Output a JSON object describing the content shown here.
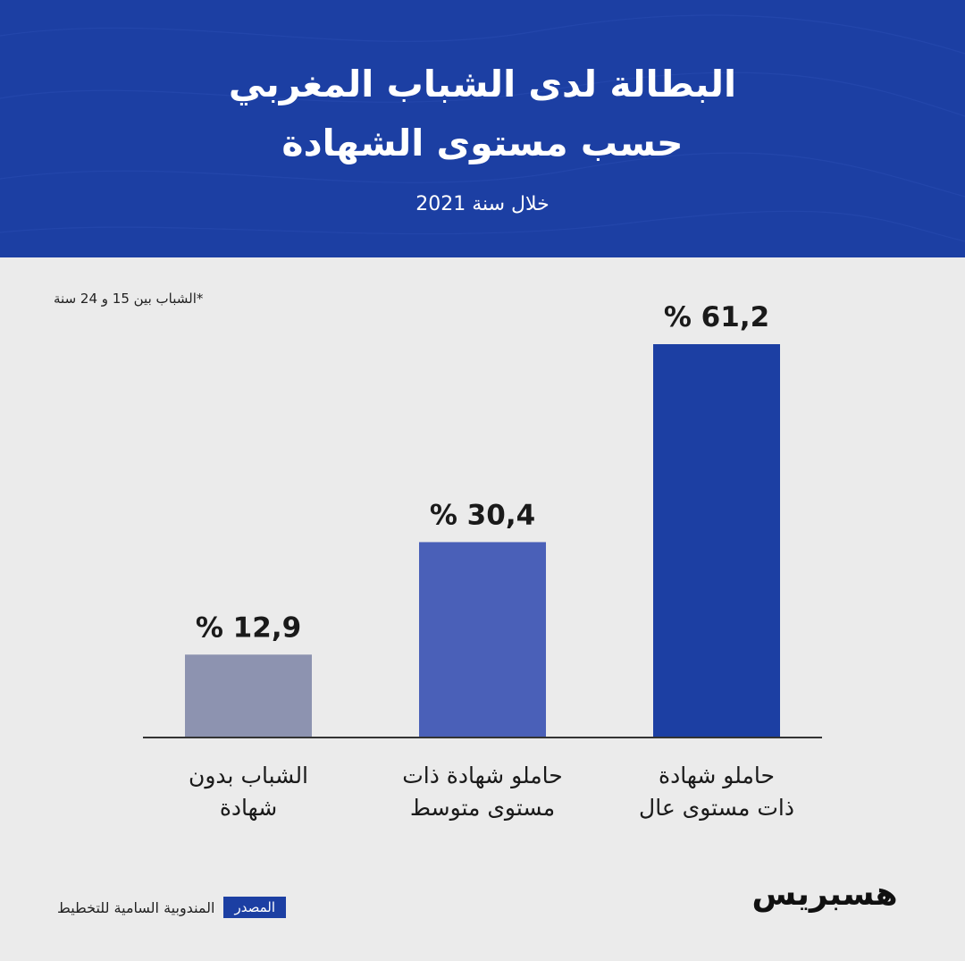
{
  "header": {
    "title_line1": "البطالة لدى الشباب المغربي",
    "title_line2": "حسب مستوى الشهادة",
    "subtitle": "خلال سنة 2021"
  },
  "footnote": "*الشباب بين 15 و 24 سنة",
  "chart_data": {
    "type": "bar",
    "categories": [
      "الشباب بدون شهادة",
      "حاملو شهادة ذات مستوى متوسط",
      "حاملو شهادة ذات مستوى عال"
    ],
    "category_lines": [
      [
        "الشباب بدون",
        "شهادة"
      ],
      [
        "حاملو شهادة ذات",
        "مستوى متوسط"
      ],
      [
        "حاملو شهادة",
        "ذات مستوى عال"
      ]
    ],
    "values": [
      12.9,
      30.4,
      61.2
    ],
    "value_labels": [
      "% 12,9",
      "% 30,4",
      "% 61,2"
    ],
    "unit": "%",
    "colors": [
      "#8d93b0",
      "#4a60b8",
      "#1c3fa3"
    ],
    "ylim": [
      0,
      61.2
    ],
    "grid": false,
    "legend": "none"
  },
  "source": {
    "label": "المصدر",
    "text": "المندوبية السامية للتخطيط"
  },
  "logo": {
    "text": "هسبريس"
  }
}
